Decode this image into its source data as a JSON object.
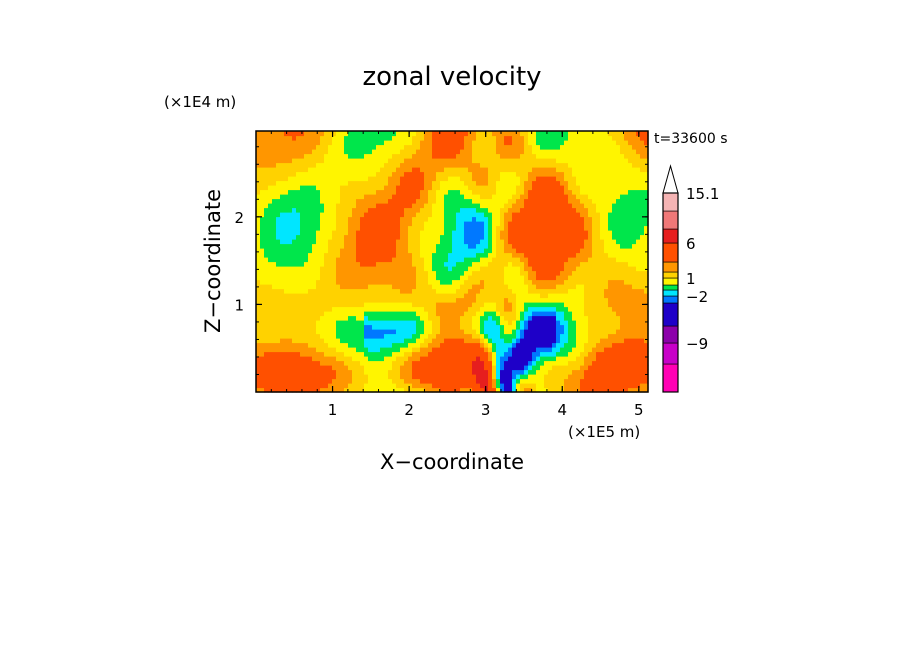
{
  "chart_data": {
    "type": "heatmap",
    "title": "zonal velocity",
    "xlabel": "X−coordinate",
    "ylabel": "Z−coordinate",
    "x_unit": "(×1E5 m)",
    "y_unit": "(×1E4 m)",
    "time_label": "t=33600 s",
    "xlim": [
      0,
      5.12
    ],
    "ylim": [
      0,
      2.98
    ],
    "x_ticks": [
      "1",
      "2",
      "3",
      "4",
      "5"
    ],
    "y_ticks": [
      "1",
      "2"
    ],
    "colorbar": {
      "levels": [
        -15,
        -12,
        -9,
        -6,
        -3,
        -2,
        -1,
        0,
        1,
        2,
        3,
        6,
        9,
        12,
        15.1
      ],
      "colors": [
        "#ff00b4",
        "#c800c8",
        "#8c00aa",
        "#1e00c8",
        "#0078ff",
        "#00e6ff",
        "#00e64b",
        "#fff500",
        "#ffd200",
        "#ff9600",
        "#ff5000",
        "#e61e1e",
        "#f07878",
        "#f5b4b4"
      ],
      "labels": [
        "15.1",
        "6",
        "1",
        "−2",
        "−9"
      ],
      "extend": "max"
    }
  }
}
